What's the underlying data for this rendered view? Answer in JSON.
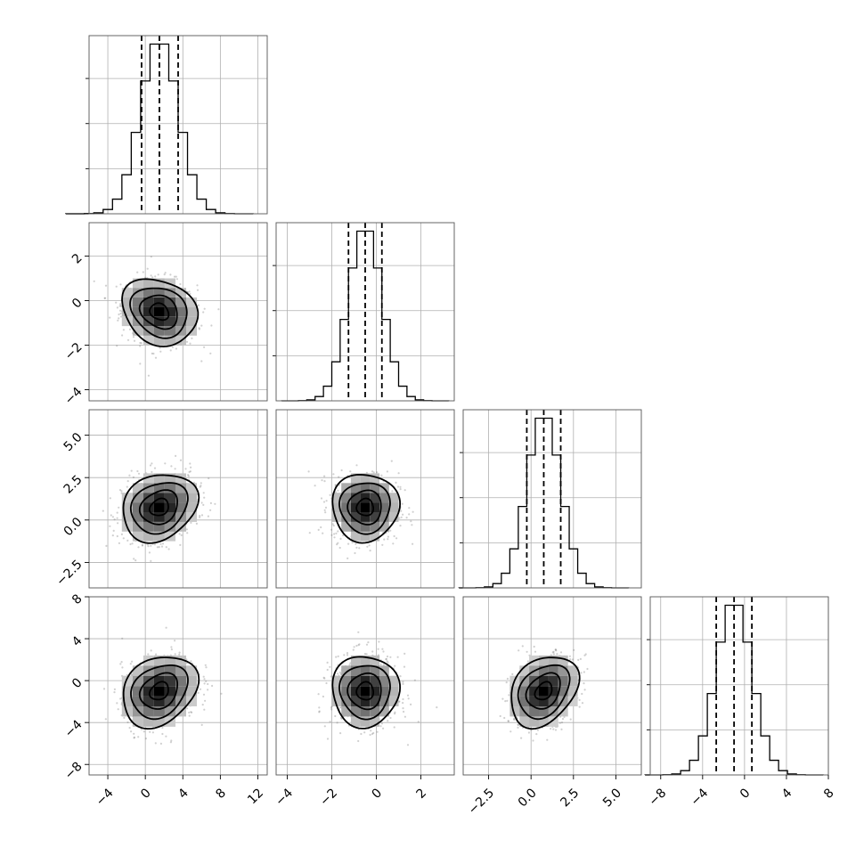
{
  "chart_data": {
    "type": "corner",
    "grid": true,
    "parameters": [
      {
        "range": [
          -6,
          13
        ],
        "mean": 1.5,
        "sd": 2.0,
        "quantiles": [
          -0.4,
          1.5,
          3.5
        ],
        "ticks": [
          -4,
          0,
          4,
          8,
          12
        ],
        "tick_labels": [
          "−4",
          "0",
          "4",
          "8",
          "12"
        ]
      },
      {
        "range": [
          -4.5,
          3.5
        ],
        "mean": -0.5,
        "sd": 0.75,
        "quantiles": [
          -1.25,
          -0.5,
          0.25
        ],
        "ticks": [
          -4,
          -2,
          0,
          2
        ],
        "tick_labels": [
          "−4",
          "−2",
          "0",
          "2"
        ]
      },
      {
        "range": [
          -4.0,
          6.5
        ],
        "mean": 0.75,
        "sd": 1.0,
        "quantiles": [
          -0.25,
          0.75,
          1.75
        ],
        "ticks": [
          -2.5,
          0.0,
          2.5,
          5.0
        ],
        "tick_labels": [
          "−2.5",
          "0.0",
          "2.5",
          "5.0"
        ]
      },
      {
        "range": [
          -9,
          8
        ],
        "mean": -1.0,
        "sd": 1.7,
        "quantiles": [
          -2.7,
          -1.0,
          0.7
        ],
        "ticks": [
          -8,
          -4,
          0,
          4,
          8
        ],
        "tick_labels": [
          "−8",
          "−4",
          "0",
          "4",
          "8"
        ]
      }
    ],
    "correlations": [
      [
        1.0,
        -0.2,
        0.2,
        0.25
      ],
      [
        -0.2,
        1.0,
        0.0,
        0.0
      ],
      [
        0.2,
        0.0,
        1.0,
        0.3
      ],
      [
        0.25,
        0.0,
        0.3,
        1.0
      ]
    ],
    "contour_levels_sigma": [
      0.5,
      1.0,
      1.5,
      2.0
    ],
    "histogram_bins": 20,
    "histogram_tick_count": 3
  }
}
